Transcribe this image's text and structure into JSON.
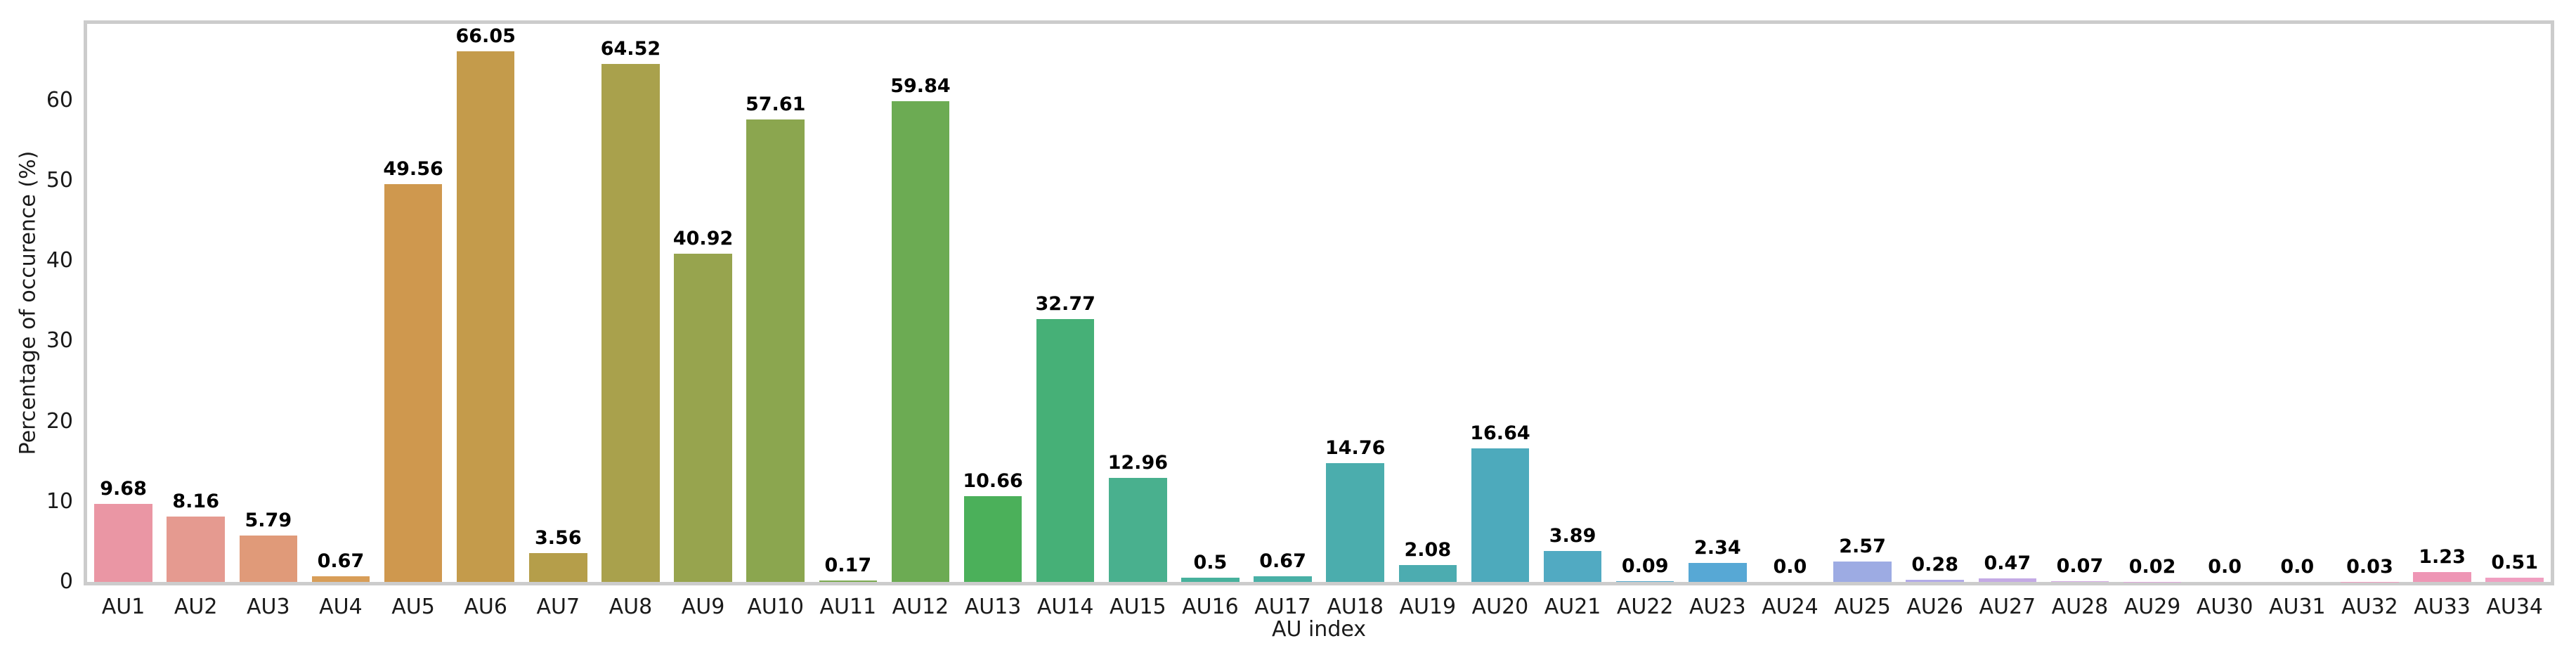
{
  "chart_data": {
    "type": "bar",
    "title": "",
    "xlabel": "AU index",
    "ylabel": "Percentage of occurence (%)",
    "ylim": [
      0,
      69.5
    ],
    "yticks": [
      0,
      10,
      20,
      30,
      40,
      50,
      60
    ],
    "grid": false,
    "legend": "none",
    "categories": [
      "AU1",
      "AU2",
      "AU3",
      "AU4",
      "AU5",
      "AU6",
      "AU7",
      "AU8",
      "AU9",
      "AU10",
      "AU11",
      "AU12",
      "AU13",
      "AU14",
      "AU15",
      "AU16",
      "AU17",
      "AU18",
      "AU19",
      "AU20",
      "AU21",
      "AU22",
      "AU23",
      "AU24",
      "AU25",
      "AU26",
      "AU27",
      "AU28",
      "AU29",
      "AU30",
      "AU31",
      "AU32",
      "AU33",
      "AU34"
    ],
    "values": [
      9.68,
      8.16,
      5.79,
      0.67,
      49.56,
      66.05,
      3.56,
      64.52,
      40.92,
      57.61,
      0.17,
      59.84,
      10.66,
      32.77,
      12.96,
      0.5,
      0.67,
      14.76,
      2.08,
      16.64,
      3.89,
      0.09,
      2.34,
      0.0,
      2.57,
      0.28,
      0.47,
      0.07,
      0.02,
      0.0,
      0.0,
      0.03,
      1.23,
      0.51
    ],
    "value_labels": [
      "9.68",
      "8.16",
      "5.79",
      "0.67",
      "49.56",
      "66.05",
      "3.56",
      "64.52",
      "40.92",
      "57.61",
      "0.17",
      "59.84",
      "10.66",
      "32.77",
      "12.96",
      "0.5",
      "0.67",
      "14.76",
      "2.08",
      "16.64",
      "3.89",
      "0.09",
      "2.34",
      "0.0",
      "2.57",
      "0.28",
      "0.47",
      "0.07",
      "0.02",
      "0.0",
      "0.0",
      "0.03",
      "1.23",
      "0.51"
    ],
    "bar_colors": [
      "#ea96a4",
      "#e59a90",
      "#e09a79",
      "#d89e58",
      "#cf984e",
      "#c49b4b",
      "#b59e4a",
      "#a9a14c",
      "#97a44e",
      "#8ba64f",
      "#7caa51",
      "#6cab53",
      "#4bb05a",
      "#46b077",
      "#49b08e",
      "#47b19c",
      "#49b0a6",
      "#4badad",
      "#4cacb0",
      "#4daabc",
      "#51aac2",
      "#55a9cc",
      "#57a8d5",
      "#7daaf0",
      "#9dabe3",
      "#b2abe8",
      "#c4aae5",
      "#d2a9e2",
      "#dda8da",
      "#e6a5d1",
      "#eca1c6",
      "#ee9cbd",
      "#ee96b5",
      "#f09fc1"
    ],
    "colors": {
      "spine": "#cccccc",
      "tick_text": "#1a1a1a",
      "value_text": "#000000",
      "background": "#ffffff"
    }
  }
}
